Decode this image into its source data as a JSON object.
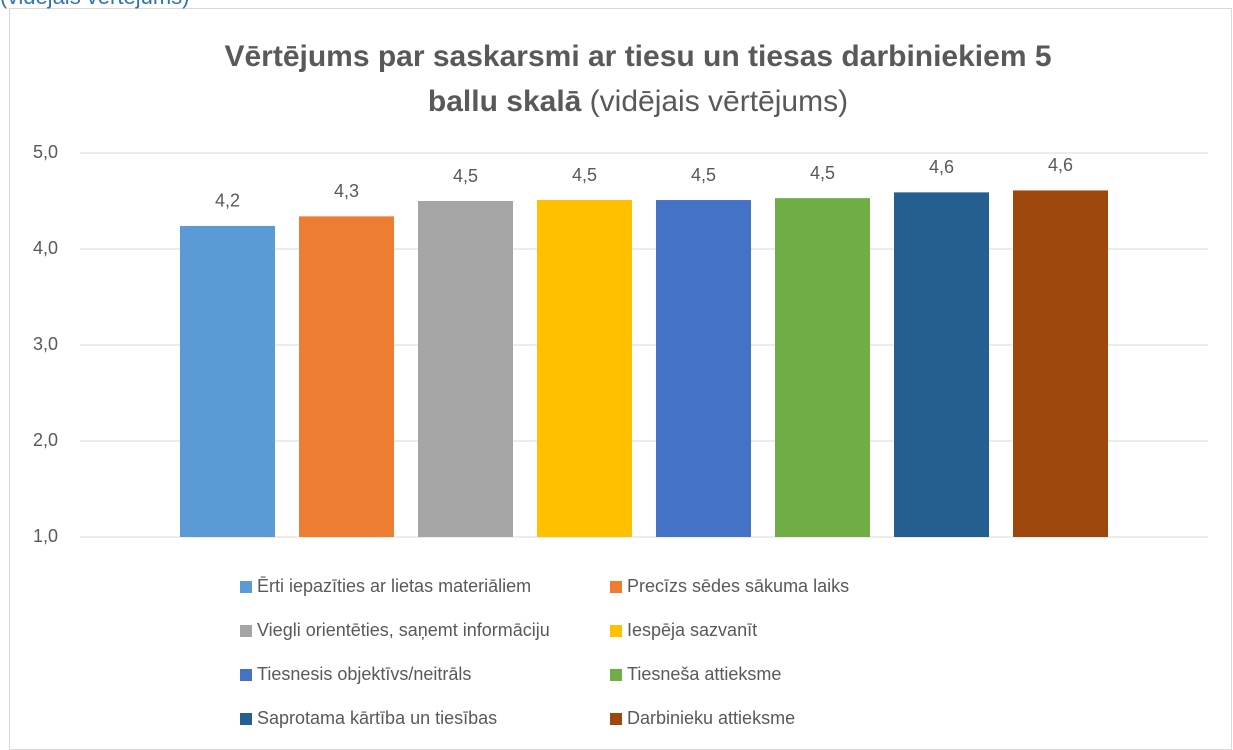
{
  "page_caption": "(vidējais vērtējums)",
  "chart_data": {
    "type": "bar",
    "title": "Vērtējums par saskarsmi ar tiesu un tiesas darbiniekiem 5 ballu skalā",
    "subtitle": "(vidējais vērtējums)",
    "categories": [
      null
    ],
    "series": [
      {
        "name": "Ērti iepazīties ar lietas materiāliem",
        "color": "#5b9bd5",
        "values": [
          4.24
        ],
        "value_labels": [
          "4,2"
        ]
      },
      {
        "name": "Precīzs sēdes sākuma laiks",
        "color": "#ed7d31",
        "values": [
          4.34
        ],
        "value_labels": [
          "4,3"
        ]
      },
      {
        "name": "Viegli orientēties, saņemt informāciju",
        "color": "#a5a5a5",
        "values": [
          4.5
        ],
        "value_labels": [
          "4,5"
        ]
      },
      {
        "name": "Iespēja sazvanīt",
        "color": "#ffc000",
        "values": [
          4.51
        ],
        "value_labels": [
          "4,5"
        ]
      },
      {
        "name": "Tiesnesis objektīvs/neitrāls",
        "color": "#4472c4",
        "values": [
          4.51
        ],
        "value_labels": [
          "4,5"
        ]
      },
      {
        "name": "Tiesneša attieksme",
        "color": "#70ad47",
        "values": [
          4.53
        ],
        "value_labels": [
          "4,5"
        ]
      },
      {
        "name": "Saprotama kārtība un tiesības",
        "color": "#255e91",
        "values": [
          4.59
        ],
        "value_labels": [
          "4,6"
        ]
      },
      {
        "name": "Darbinieku attieksme",
        "color": "#9e480e",
        "values": [
          4.61
        ],
        "value_labels": [
          "4,6"
        ]
      }
    ],
    "ylim": [
      1,
      5
    ],
    "yticks": [
      {
        "value": 1,
        "label": "1,0"
      },
      {
        "value": 2,
        "label": "2,0"
      },
      {
        "value": 3,
        "label": "3,0"
      },
      {
        "value": 4,
        "label": "4,0"
      },
      {
        "value": 5,
        "label": "5,0"
      }
    ],
    "grid": true
  }
}
